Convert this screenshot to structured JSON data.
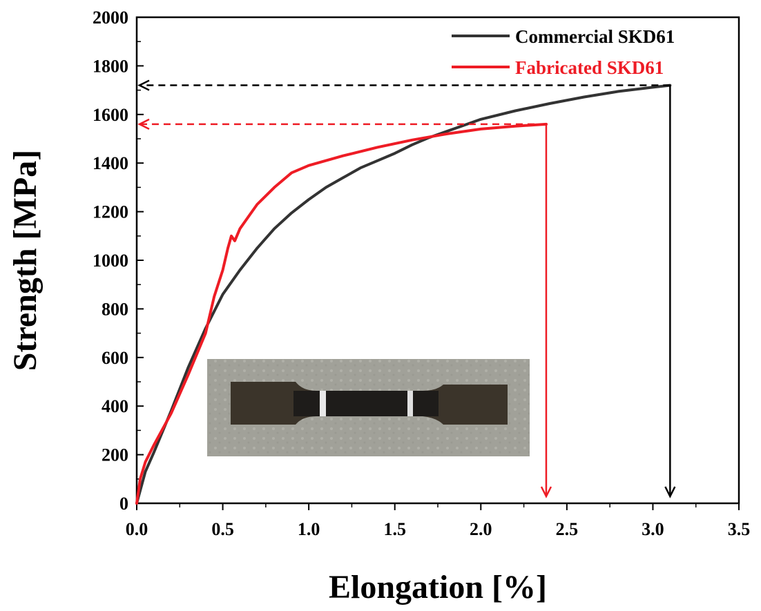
{
  "chart_data": {
    "type": "line",
    "xlabel": "Elongation [%]",
    "ylabel": "Strength [MPa]",
    "xlim": [
      0,
      3.5
    ],
    "ylim": [
      0,
      2000
    ],
    "x_ticks": [
      "0.0",
      "0.5",
      "1.0",
      "1.5",
      "2.0",
      "2.5",
      "3.0",
      "3.5"
    ],
    "y_ticks": [
      "0",
      "200",
      "400",
      "600",
      "800",
      "1000",
      "1200",
      "1400",
      "1600",
      "1800",
      "2000"
    ],
    "legend_position": "top-right",
    "grid": false,
    "series": [
      {
        "name": "Commercial SKD61",
        "color": "#333333",
        "x": [
          0.0,
          0.05,
          0.1,
          0.2,
          0.3,
          0.4,
          0.5,
          0.6,
          0.7,
          0.8,
          0.9,
          1.0,
          1.1,
          1.2,
          1.3,
          1.4,
          1.5,
          1.6,
          1.7,
          1.8,
          1.9,
          2.0,
          2.2,
          2.4,
          2.6,
          2.8,
          3.0,
          3.1
        ],
        "y": [
          0,
          130,
          210,
          380,
          560,
          720,
          860,
          960,
          1050,
          1130,
          1195,
          1250,
          1300,
          1340,
          1380,
          1410,
          1440,
          1475,
          1505,
          1530,
          1555,
          1580,
          1615,
          1645,
          1672,
          1695,
          1712,
          1720
        ]
      },
      {
        "name": "Fabricated SKD61",
        "color": "#ee1c25",
        "x": [
          0.0,
          0.02,
          0.05,
          0.1,
          0.2,
          0.3,
          0.4,
          0.45,
          0.5,
          0.53,
          0.55,
          0.57,
          0.6,
          0.65,
          0.7,
          0.8,
          0.9,
          1.0,
          1.2,
          1.4,
          1.6,
          1.8,
          2.0,
          2.2,
          2.38
        ],
        "y": [
          0,
          100,
          170,
          240,
          370,
          530,
          700,
          850,
          960,
          1050,
          1100,
          1080,
          1130,
          1180,
          1230,
          1300,
          1360,
          1390,
          1430,
          1465,
          1495,
          1520,
          1540,
          1552,
          1560
        ]
      }
    ],
    "annotations": [
      {
        "series": "Commercial SKD61",
        "x": 3.1,
        "y": 1720,
        "color": "#000000"
      },
      {
        "series": "Fabricated SKD61",
        "x": 2.38,
        "y": 1560,
        "color": "#ee1c25"
      }
    ]
  }
}
